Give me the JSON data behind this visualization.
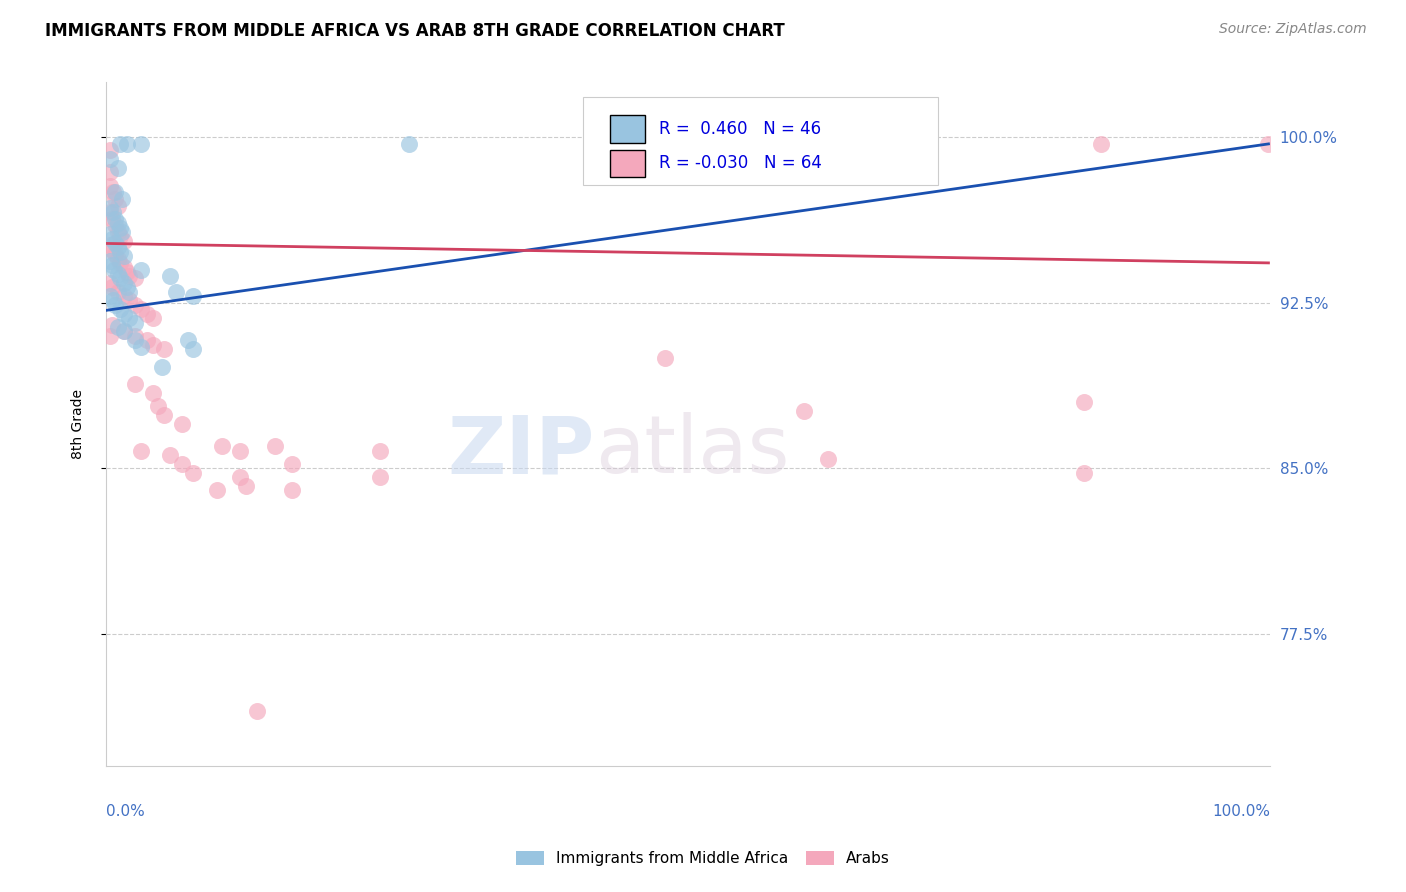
{
  "title": "IMMIGRANTS FROM MIDDLE AFRICA VS ARAB 8TH GRADE CORRELATION CHART",
  "source": "Source: ZipAtlas.com",
  "ylabel": "8th Grade",
  "ytick_vals": [
    0.775,
    0.85,
    0.925,
    1.0
  ],
  "ytick_labels": [
    "77.5%",
    "85.0%",
    "92.5%",
    "100.0%"
  ],
  "xlim": [
    0.0,
    1.0
  ],
  "ylim": [
    0.715,
    1.025
  ],
  "watermark_zip": "ZIP",
  "watermark_atlas": "atlas",
  "blue_color": "#99C4E0",
  "pink_color": "#F4A8BC",
  "blue_line_color": "#1A50B0",
  "pink_line_color": "#D04060",
  "tick_color": "#4472C4",
  "title_fontsize": 12,
  "source_fontsize": 10,
  "blue_R": "0.460",
  "blue_N": "46",
  "pink_R": "-0.030",
  "pink_N": "64",
  "blue_label": "Immigrants from Middle Africa",
  "pink_label": "Arabs",
  "blue_scatter": [
    [
      0.003,
      0.99
    ],
    [
      0.01,
      0.986
    ],
    [
      0.012,
      0.997
    ],
    [
      0.018,
      0.997
    ],
    [
      0.03,
      0.997
    ],
    [
      0.008,
      0.975
    ],
    [
      0.014,
      0.972
    ],
    [
      0.003,
      0.968
    ],
    [
      0.006,
      0.966
    ],
    [
      0.008,
      0.963
    ],
    [
      0.01,
      0.961
    ],
    [
      0.012,
      0.959
    ],
    [
      0.014,
      0.957
    ],
    [
      0.003,
      0.956
    ],
    [
      0.005,
      0.954
    ],
    [
      0.008,
      0.952
    ],
    [
      0.01,
      0.95
    ],
    [
      0.012,
      0.948
    ],
    [
      0.015,
      0.946
    ],
    [
      0.003,
      0.944
    ],
    [
      0.005,
      0.942
    ],
    [
      0.007,
      0.94
    ],
    [
      0.01,
      0.938
    ],
    [
      0.012,
      0.936
    ],
    [
      0.015,
      0.934
    ],
    [
      0.018,
      0.932
    ],
    [
      0.02,
      0.93
    ],
    [
      0.003,
      0.928
    ],
    [
      0.006,
      0.926
    ],
    [
      0.008,
      0.924
    ],
    [
      0.012,
      0.922
    ],
    [
      0.015,
      0.92
    ],
    [
      0.02,
      0.918
    ],
    [
      0.025,
      0.916
    ],
    [
      0.01,
      0.914
    ],
    [
      0.015,
      0.912
    ],
    [
      0.025,
      0.908
    ],
    [
      0.03,
      0.905
    ],
    [
      0.03,
      0.94
    ],
    [
      0.055,
      0.937
    ],
    [
      0.06,
      0.93
    ],
    [
      0.075,
      0.928
    ],
    [
      0.07,
      0.908
    ],
    [
      0.075,
      0.904
    ],
    [
      0.048,
      0.896
    ],
    [
      0.26,
      0.997
    ]
  ],
  "pink_scatter": [
    [
      0.003,
      0.994
    ],
    [
      0.003,
      0.984
    ],
    [
      0.003,
      0.978
    ],
    [
      0.006,
      0.975
    ],
    [
      0.008,
      0.972
    ],
    [
      0.01,
      0.969
    ],
    [
      0.003,
      0.966
    ],
    [
      0.005,
      0.963
    ],
    [
      0.008,
      0.96
    ],
    [
      0.01,
      0.957
    ],
    [
      0.012,
      0.955
    ],
    [
      0.015,
      0.953
    ],
    [
      0.003,
      0.951
    ],
    [
      0.005,
      0.949
    ],
    [
      0.008,
      0.947
    ],
    [
      0.01,
      0.945
    ],
    [
      0.012,
      0.943
    ],
    [
      0.015,
      0.941
    ],
    [
      0.018,
      0.939
    ],
    [
      0.02,
      0.937
    ],
    [
      0.025,
      0.936
    ],
    [
      0.003,
      0.934
    ],
    [
      0.005,
      0.932
    ],
    [
      0.01,
      0.93
    ],
    [
      0.015,
      0.928
    ],
    [
      0.02,
      0.926
    ],
    [
      0.025,
      0.924
    ],
    [
      0.03,
      0.922
    ],
    [
      0.035,
      0.92
    ],
    [
      0.04,
      0.918
    ],
    [
      0.005,
      0.915
    ],
    [
      0.015,
      0.912
    ],
    [
      0.025,
      0.91
    ],
    [
      0.035,
      0.908
    ],
    [
      0.04,
      0.906
    ],
    [
      0.05,
      0.904
    ],
    [
      0.025,
      0.888
    ],
    [
      0.04,
      0.884
    ],
    [
      0.045,
      0.878
    ],
    [
      0.05,
      0.874
    ],
    [
      0.065,
      0.87
    ],
    [
      0.03,
      0.858
    ],
    [
      0.055,
      0.856
    ],
    [
      0.065,
      0.852
    ],
    [
      0.075,
      0.848
    ],
    [
      0.1,
      0.86
    ],
    [
      0.115,
      0.858
    ],
    [
      0.115,
      0.846
    ],
    [
      0.12,
      0.842
    ],
    [
      0.095,
      0.84
    ],
    [
      0.16,
      0.852
    ],
    [
      0.16,
      0.84
    ],
    [
      0.235,
      0.858
    ],
    [
      0.235,
      0.846
    ],
    [
      0.145,
      0.86
    ],
    [
      0.48,
      0.9
    ],
    [
      0.6,
      0.876
    ],
    [
      0.62,
      0.854
    ],
    [
      0.84,
      0.88
    ],
    [
      0.13,
      0.74
    ],
    [
      0.84,
      0.848
    ],
    [
      0.855,
      0.997
    ],
    [
      0.998,
      0.997
    ],
    [
      0.003,
      0.91
    ]
  ],
  "blue_trend_x": [
    -0.02,
    1.0
  ],
  "blue_trend_y": [
    0.92,
    0.997
  ],
  "pink_trend_x": [
    -0.02,
    1.0
  ],
  "pink_trend_y": [
    0.952,
    0.943
  ]
}
